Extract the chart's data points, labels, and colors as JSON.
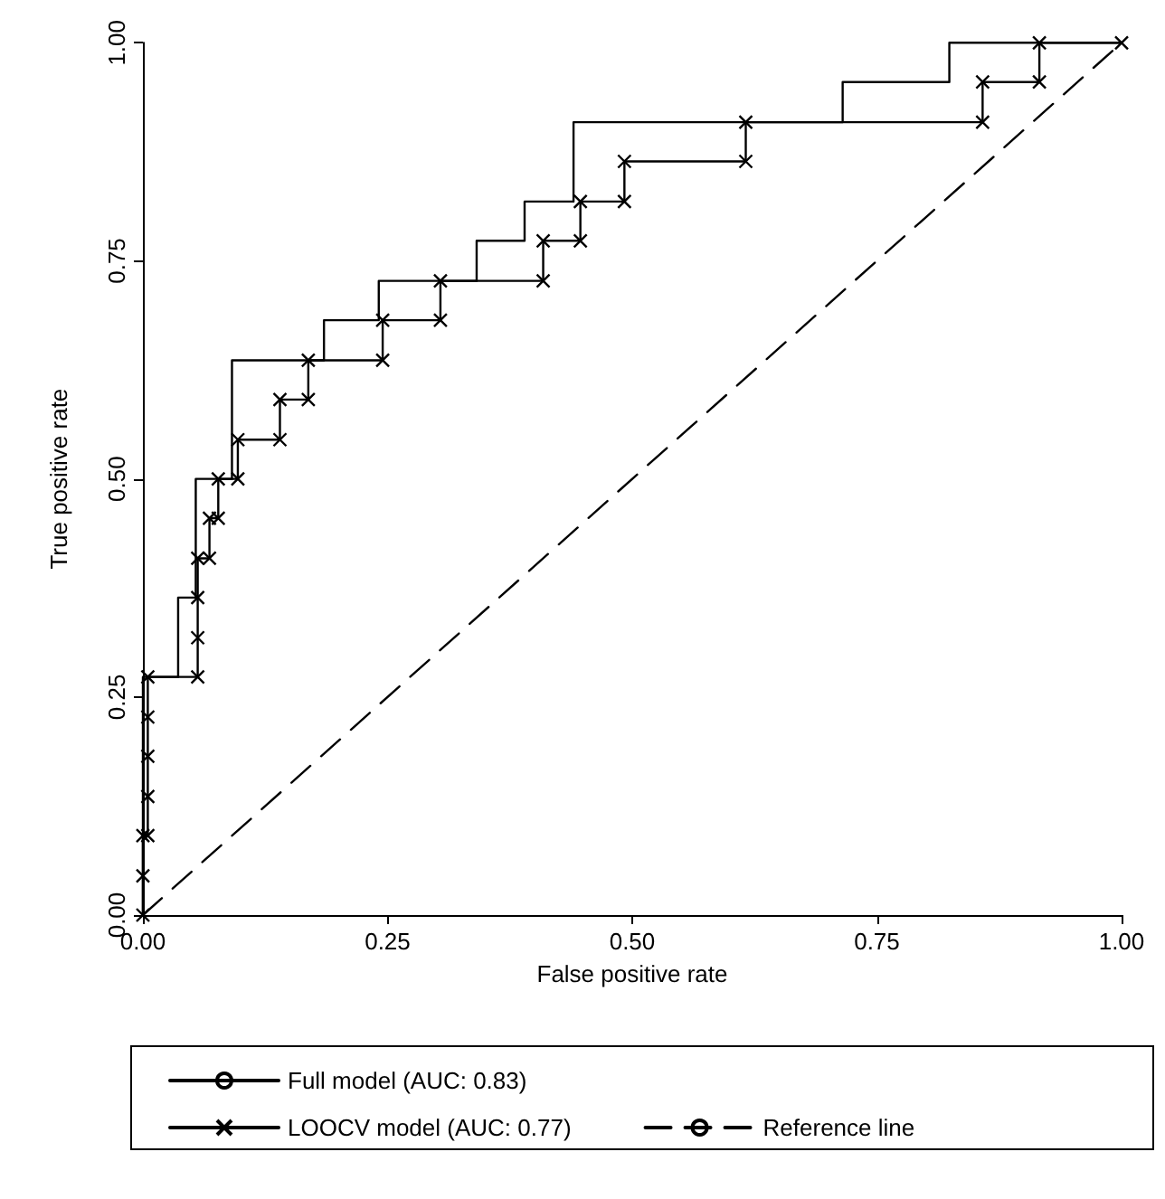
{
  "chart_data": {
    "type": "line",
    "xlabel": "False positive rate",
    "ylabel": "True positive rate",
    "xlim": [
      0,
      1
    ],
    "ylim": [
      0,
      1
    ],
    "xticks": [
      {
        "value": 0,
        "label": "0.00"
      },
      {
        "value": 0.25,
        "label": "0.25"
      },
      {
        "value": 0.5,
        "label": "0.50"
      },
      {
        "value": 0.75,
        "label": "0.75"
      },
      {
        "value": 1,
        "label": "1.00"
      }
    ],
    "yticks": [
      {
        "value": 0,
        "label": "0.00"
      },
      {
        "value": 0.25,
        "label": "0.25"
      },
      {
        "value": 0.5,
        "label": "0.50"
      },
      {
        "value": 0.75,
        "label": "0.75"
      },
      {
        "value": 1,
        "label": "1.00"
      }
    ],
    "grid": false,
    "legend": "bottom",
    "series": [
      {
        "name": "Full model (AUC: 0.83)",
        "color": "#000000",
        "marker": "none",
        "line_style": "solid",
        "x": [
          0,
          0,
          0.036,
          0.036,
          0.054,
          0.054,
          0.091,
          0.091,
          0.185,
          0.185,
          0.241,
          0.241,
          0.341,
          0.341,
          0.39,
          0.39,
          0.44,
          0.44,
          0.715,
          0.715,
          0.824,
          0.824,
          1
        ],
        "values": [
          0,
          0.273,
          0.273,
          0.364,
          0.364,
          0.5,
          0.5,
          0.636,
          0.636,
          0.682,
          0.682,
          0.727,
          0.727,
          0.773,
          0.773,
          0.818,
          0.818,
          0.909,
          0.909,
          0.955,
          0.955,
          1,
          1
        ]
      },
      {
        "name": "LOOCV model (AUC: 0.77)",
        "color": "#000000",
        "marker": "cross",
        "line_style": "solid",
        "x": [
          0,
          0,
          0,
          0.005,
          0.005,
          0.005,
          0.005,
          0.005,
          0.056,
          0.056,
          0.056,
          0.056,
          0.068,
          0.068,
          0.077,
          0.077,
          0.097,
          0.097,
          0.14,
          0.14,
          0.169,
          0.169,
          0.245,
          0.245,
          0.304,
          0.304,
          0.409,
          0.409,
          0.447,
          0.447,
          0.492,
          0.492,
          0.616,
          0.616,
          0.858,
          0.858,
          0.916,
          0.916,
          1
        ],
        "values": [
          0,
          0.045,
          0.091,
          0.091,
          0.136,
          0.182,
          0.227,
          0.273,
          0.273,
          0.318,
          0.364,
          0.409,
          0.409,
          0.455,
          0.455,
          0.5,
          0.5,
          0.545,
          0.545,
          0.591,
          0.591,
          0.636,
          0.636,
          0.682,
          0.682,
          0.727,
          0.727,
          0.773,
          0.773,
          0.818,
          0.818,
          0.864,
          0.864,
          0.909,
          0.909,
          0.955,
          0.955,
          1,
          1
        ]
      },
      {
        "name": "Reference line",
        "color": "#000000",
        "marker": "none",
        "line_style": "dashed",
        "x": [
          0,
          1
        ],
        "values": [
          0,
          1
        ]
      }
    ]
  }
}
